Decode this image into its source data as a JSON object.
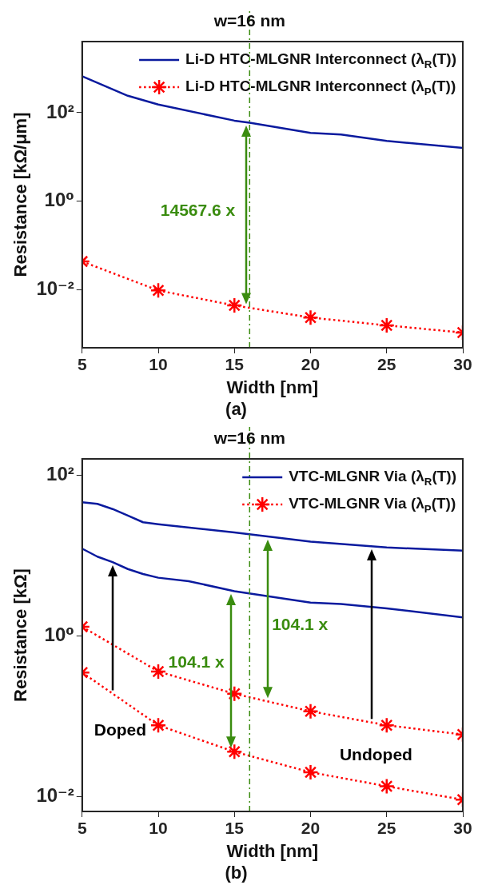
{
  "chart_data": [
    {
      "type": "line",
      "title": "(a)",
      "xlabel": "Width [nm]",
      "ylabel": "Resistance [kΩ/μm]",
      "log": "y",
      "legend": "top right",
      "xlim": [
        5,
        30
      ],
      "xticks": [
        5,
        10,
        15,
        20,
        25,
        30
      ],
      "ylim": [
        0.0005,
        4000
      ],
      "yticks": [
        {
          "value": 0.01,
          "label": "10⁻²"
        },
        {
          "value": 1,
          "label": "10⁰"
        },
        {
          "value": 100,
          "label": "10²"
        }
      ],
      "series": [
        {
          "name": "Li-D HTC-MLGNR Interconnect (λ$_{R}$(T))",
          "color": "#0a1a9e",
          "line_style": "solid",
          "marker": "none",
          "x": [
            5,
            8,
            10,
            15,
            16,
            20,
            22,
            25,
            30
          ],
          "values": [
            660,
            240,
            152,
            66,
            59,
            35,
            32,
            23,
            16
          ]
        },
        {
          "name": "Li-D HTC-MLGNR Interconnect (λ$_{P}$(T))",
          "color": "#ff0000",
          "line_style": "dotted",
          "marker": "cross",
          "x": [
            5,
            10,
            15,
            20,
            25,
            30
          ],
          "values": [
            0.044,
            0.0098,
            0.0045,
            0.0024,
            0.0016,
            0.0011
          ]
        }
      ],
      "ref_lines": [
        {
          "axis": "x",
          "value": 16,
          "label": "w=16 nm",
          "color": "#3a8c0f",
          "line_style": "dashed"
        }
      ],
      "annotations": [
        "14567.6 x"
      ]
    },
    {
      "type": "line",
      "title": "(b)",
      "xlabel": "Width [nm]",
      "ylabel": "Resistance [kΩ]",
      "log": "y",
      "legend": "top right",
      "xlim": [
        5,
        30
      ],
      "xticks": [
        5,
        10,
        15,
        20,
        25,
        30
      ],
      "ylim": [
        0.0065,
        160
      ],
      "yticks": [
        {
          "value": 0.01,
          "label": "10⁻²"
        },
        {
          "value": 1,
          "label": "10⁰"
        },
        {
          "value": 100,
          "label": "10²"
        }
      ],
      "series": [
        {
          "name": "VTC-MLGNR Via (λ$_{R}$(T))",
          "color": "#0a1a9e",
          "line_style": "solid",
          "marker": "none",
          "x": [
            5,
            6,
            7,
            8,
            9,
            10,
            15,
            20,
            25,
            30
          ],
          "values": [
            46,
            44,
            38,
            31.5,
            26,
            24.6,
            19.4,
            14.9,
            12.6,
            11.5
          ]
        },
        {
          "name": "VTC-MLGNR Via (λ$_{P}$(T))",
          "color": "#ff0000",
          "line_style": "dotted",
          "marker": "cross",
          "x": [
            5,
            10,
            15,
            20,
            25,
            30
          ],
          "values": [
            1.3,
            0.36,
            0.19,
            0.115,
            0.077,
            0.059
          ]
        },
        {
          "color": "#0a1a9e",
          "line_style": "solid",
          "marker": "none",
          "x": [
            5,
            6,
            7,
            8,
            9,
            10,
            12,
            15,
            20,
            22,
            25,
            30
          ],
          "values": [
            12.2,
            9.7,
            8.3,
            6.8,
            5.9,
            5.3,
            4.8,
            3.6,
            2.6,
            2.5,
            2.2,
            1.7
          ]
        },
        {
          "color": "#ff0000",
          "line_style": "dotted",
          "marker": "cross",
          "x": [
            5,
            10,
            15,
            20,
            25,
            30
          ],
          "values": [
            0.35,
            0.077,
            0.036,
            0.02,
            0.0134,
            0.0091
          ]
        }
      ],
      "ref_lines": [
        {
          "axis": "x",
          "value": 16,
          "label": "w=16 nm",
          "color": "#3a8c0f",
          "line_style": "dashed"
        }
      ],
      "annotations": [
        "104.1 x",
        "104.1 x",
        "Doped",
        "Undoped"
      ]
    }
  ]
}
